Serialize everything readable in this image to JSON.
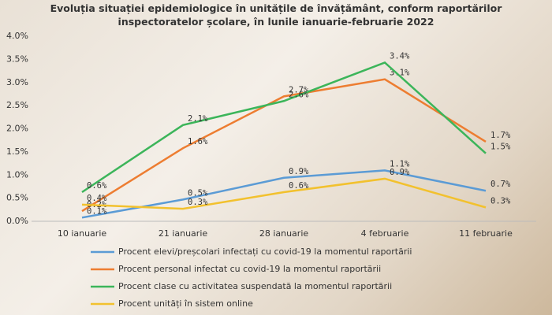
{
  "chart_data": {
    "type": "line",
    "title": "Evoluția situației epidemiologice în unitățile de învățământ, conform raportărilor inspectoratelor școlare, în lunile ianuarie-februarie 2022",
    "categories": [
      "10 ianuarie",
      "21 ianuarie",
      "28 ianuarie",
      "4 februarie",
      "11 februarie"
    ],
    "series": [
      {
        "name": "Procent elevi/preșcolari infectați cu covid-19 la momentul raportării",
        "color": "#5b9bd5",
        "values": [
          0.08,
          0.47,
          0.94,
          1.1,
          0.66
        ],
        "value_labels": [
          "0.1%",
          "0.5%",
          "0.9%",
          "1.1%",
          "0.7%"
        ]
      },
      {
        "name": "Procent personal infectat cu covid-19 la momentul raportării",
        "color": "#ed7d31",
        "values": [
          0.22,
          1.58,
          2.7,
          3.07,
          1.72
        ],
        "value_labels": [
          "0.2%",
          "1.6%",
          "2.7%",
          "3.1%",
          "1.7%"
        ]
      },
      {
        "name": "Procent clase cu activitatea suspendată la momentul raportării",
        "color": "#3cb55a",
        "values": [
          0.63,
          2.08,
          2.6,
          3.43,
          1.47
        ],
        "value_labels": [
          "0.6%",
          "2.1%",
          "2.6%",
          "3.4%",
          "1.5%"
        ]
      },
      {
        "name": "Procent unități în sistem online",
        "color": "#f2c12e",
        "values": [
          0.36,
          0.27,
          0.63,
          0.92,
          0.3
        ],
        "value_labels": [
          "0.4%",
          "0.3%",
          "0.6%",
          "0.9%",
          "0.3%"
        ]
      }
    ],
    "ylim": [
      0,
      4
    ],
    "yticks": [
      {
        "value": 0,
        "label": "0.0%"
      },
      {
        "value": 0.5,
        "label": "0.5%"
      },
      {
        "value": 1,
        "label": "1.0%"
      },
      {
        "value": 1.5,
        "label": "1.5%"
      },
      {
        "value": 2,
        "label": "2.0%"
      },
      {
        "value": 2.5,
        "label": "2.5%"
      },
      {
        "value": 3,
        "label": "3.0%"
      },
      {
        "value": 3.5,
        "label": "3.5%"
      },
      {
        "value": 4,
        "label": "4.0%"
      }
    ],
    "grid": false,
    "legend": "bottom"
  }
}
